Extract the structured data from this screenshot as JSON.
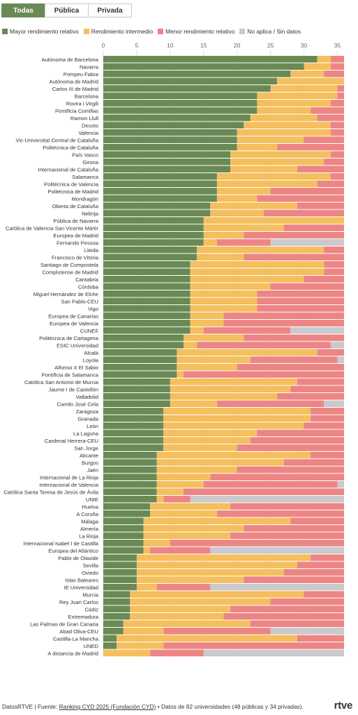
{
  "tabs": [
    {
      "label": "Todas",
      "active": true
    },
    {
      "label": "Pública",
      "active": false
    },
    {
      "label": "Privada",
      "active": false
    }
  ],
  "colors": {
    "mayor": "#6a8a55",
    "intermedio": "#f5bf5e",
    "menor": "#ee8585",
    "na": "#c9c9ce"
  },
  "legend": [
    {
      "label": "Mayor rendimiento relativo",
      "color": "#6a8a55"
    },
    {
      "label": "Rendimiento intermedio",
      "color": "#f5bf5e"
    },
    {
      "label": "Menor rendimiento relativo",
      "color": "#ee8585"
    },
    {
      "label": "No aplica / Sin datos",
      "color": "#c9c9ce"
    }
  ],
  "chart_data": {
    "type": "bar",
    "orientation": "horizontal",
    "stacked": true,
    "xlim": [
      0,
      36
    ],
    "xticks": [
      0,
      5,
      10,
      15,
      20,
      25,
      30,
      35
    ],
    "grid": true,
    "series_keys": [
      "mayor",
      "intermedio",
      "menor",
      "na"
    ],
    "series": [
      {
        "name": "Mayor rendimiento relativo",
        "key": "mayor"
      },
      {
        "name": "Rendimiento intermedio",
        "key": "intermedio"
      },
      {
        "name": "Menor rendimiento relativo",
        "key": "menor"
      },
      {
        "name": "No aplica / Sin datos",
        "key": "na"
      }
    ],
    "rows": [
      {
        "name": "Autónoma de Barcelona",
        "v": [
          32,
          2,
          2,
          0
        ]
      },
      {
        "name": "Navarra",
        "v": [
          30,
          4,
          2,
          0
        ]
      },
      {
        "name": "Pompeu Fabra",
        "v": [
          28,
          5,
          3,
          0
        ]
      },
      {
        "name": "Autónoma de Madrid",
        "v": [
          26,
          10,
          0,
          0
        ]
      },
      {
        "name": "Carlos III de Madrid",
        "v": [
          25,
          10,
          1,
          0
        ]
      },
      {
        "name": "Barcelona",
        "v": [
          23,
          12,
          1,
          0
        ]
      },
      {
        "name": "Rovira i Virgili",
        "v": [
          23,
          11,
          2,
          0
        ]
      },
      {
        "name": "Pontificia Comillas",
        "v": [
          23,
          8,
          5,
          0
        ]
      },
      {
        "name": "Ramon Llull",
        "v": [
          22,
          10,
          4,
          0
        ]
      },
      {
        "name": "Deusto",
        "v": [
          21,
          13,
          2,
          0
        ]
      },
      {
        "name": "Valencia",
        "v": [
          20,
          14,
          2,
          0
        ]
      },
      {
        "name": "Vic-Universitat Central de Cataluña",
        "v": [
          20,
          10,
          6,
          0
        ]
      },
      {
        "name": "Politécnica de Cataluña",
        "v": [
          20,
          6,
          10,
          0
        ]
      },
      {
        "name": "País Vasco",
        "v": [
          19,
          15,
          2,
          0
        ]
      },
      {
        "name": "Girona",
        "v": [
          19,
          14,
          3,
          0
        ]
      },
      {
        "name": "Internacional de Cataluña",
        "v": [
          19,
          10,
          7,
          0
        ]
      },
      {
        "name": "Salamanca",
        "v": [
          17,
          17,
          2,
          0
        ]
      },
      {
        "name": "Politécnica de Valencia",
        "v": [
          17,
          15,
          4,
          0
        ]
      },
      {
        "name": "Politécnica de Madrid",
        "v": [
          17,
          8,
          11,
          0
        ]
      },
      {
        "name": "Mondragón",
        "v": [
          17,
          6,
          13,
          0
        ]
      },
      {
        "name": "Oberta de Cataluña",
        "v": [
          16,
          13,
          7,
          0
        ]
      },
      {
        "name": "Nebrija",
        "v": [
          16,
          8,
          12,
          0
        ]
      },
      {
        "name": "Pública de Navarra",
        "v": [
          15,
          21,
          0,
          0
        ]
      },
      {
        "name": "Católica de Valencia San Vicente Mártir",
        "v": [
          15,
          12,
          9,
          0
        ]
      },
      {
        "name": "Europea de Madrid",
        "v": [
          15,
          6,
          15,
          0
        ]
      },
      {
        "name": "Fernando Pessoa",
        "v": [
          15,
          2,
          8,
          11
        ]
      },
      {
        "name": "Lleida",
        "v": [
          14,
          19,
          3,
          0
        ]
      },
      {
        "name": "Francisco de Vitoria",
        "v": [
          14,
          7,
          15,
          0
        ]
      },
      {
        "name": "Santiago de Compostela",
        "v": [
          13,
          20,
          3,
          0
        ]
      },
      {
        "name": "Complutense de Madrid",
        "v": [
          13,
          20,
          3,
          0
        ]
      },
      {
        "name": "Cantabria",
        "v": [
          13,
          17,
          6,
          0
        ]
      },
      {
        "name": "Córdoba",
        "v": [
          13,
          12,
          11,
          0
        ]
      },
      {
        "name": "Miguel Hernández de Elche",
        "v": [
          13,
          10,
          13,
          0
        ]
      },
      {
        "name": "San Pablo-CEU",
        "v": [
          13,
          10,
          13,
          0
        ]
      },
      {
        "name": "Vigo",
        "v": [
          13,
          10,
          13,
          0
        ]
      },
      {
        "name": "Europea de Canarias",
        "v": [
          13,
          5,
          18,
          0
        ]
      },
      {
        "name": "Europea de Valencia",
        "v": [
          13,
          5,
          18,
          0
        ]
      },
      {
        "name": "CUNEF",
        "v": [
          13,
          2,
          13,
          8
        ]
      },
      {
        "name": "Politécnica de Cartagena",
        "v": [
          12,
          9,
          15,
          0
        ]
      },
      {
        "name": "ESIC Universidad",
        "v": [
          12,
          2,
          20,
          2
        ]
      },
      {
        "name": "Alcalá",
        "v": [
          11,
          21,
          4,
          0
        ]
      },
      {
        "name": "Loyola",
        "v": [
          11,
          11,
          13,
          1
        ]
      },
      {
        "name": "Alfonso X El Sabio",
        "v": [
          11,
          9,
          16,
          0
        ]
      },
      {
        "name": "Pontificia de Salamanca",
        "v": [
          11,
          1,
          24,
          0
        ]
      },
      {
        "name": "Católica San Antonio de Murcia",
        "v": [
          10,
          19,
          7,
          0
        ]
      },
      {
        "name": "Jaume I de Castellón",
        "v": [
          10,
          18,
          8,
          0
        ]
      },
      {
        "name": "Valladolid",
        "v": [
          10,
          16,
          10,
          0
        ]
      },
      {
        "name": "Camilo José Cela",
        "v": [
          10,
          7,
          16,
          3
        ]
      },
      {
        "name": "Zaragoza",
        "v": [
          9,
          22,
          5,
          0
        ]
      },
      {
        "name": "Granada",
        "v": [
          9,
          22,
          5,
          0
        ]
      },
      {
        "name": "León",
        "v": [
          9,
          21,
          6,
          0
        ]
      },
      {
        "name": "La Laguna",
        "v": [
          9,
          14,
          13,
          0
        ]
      },
      {
        "name": "Cardenal Herrera-CEU",
        "v": [
          9,
          13,
          14,
          0
        ]
      },
      {
        "name": "San Jorge",
        "v": [
          9,
          11,
          16,
          0
        ]
      },
      {
        "name": "Alicante",
        "v": [
          8,
          23,
          5,
          0
        ]
      },
      {
        "name": "Burgos",
        "v": [
          8,
          19,
          9,
          0
        ]
      },
      {
        "name": "Jaén",
        "v": [
          8,
          12,
          16,
          0
        ]
      },
      {
        "name": "Internacional de La Rioja",
        "v": [
          8,
          8,
          20,
          0
        ]
      },
      {
        "name": "Internacional de Valencia",
        "v": [
          8,
          7,
          20,
          1
        ]
      },
      {
        "name": "Católica Santa Teresa de Jesús de Ávila",
        "v": [
          8,
          4,
          24,
          0
        ]
      },
      {
        "name": "UNIE",
        "v": [
          8,
          1,
          4,
          23
        ]
      },
      {
        "name": "Huelva",
        "v": [
          7,
          12,
          17,
          0
        ]
      },
      {
        "name": "A Coruña",
        "v": [
          7,
          10,
          19,
          0
        ]
      },
      {
        "name": "Málaga",
        "v": [
          6,
          22,
          8,
          0
        ]
      },
      {
        "name": "Almería",
        "v": [
          6,
          15,
          15,
          0
        ]
      },
      {
        "name": "La Rioja",
        "v": [
          6,
          13,
          17,
          0
        ]
      },
      {
        "name": "Internacional Isabel I de Castilla",
        "v": [
          6,
          4,
          26,
          0
        ]
      },
      {
        "name": "Europea del Atlántico",
        "v": [
          6,
          1,
          9,
          20
        ]
      },
      {
        "name": "Pablo de Olavide",
        "v": [
          5,
          26,
          5,
          0
        ]
      },
      {
        "name": "Sevilla",
        "v": [
          5,
          24,
          7,
          0
        ]
      },
      {
        "name": "Oviedo",
        "v": [
          5,
          22,
          9,
          0
        ]
      },
      {
        "name": "Islas Baleares",
        "v": [
          5,
          16,
          15,
          0
        ]
      },
      {
        "name": "IE Universidad",
        "v": [
          5,
          3,
          8,
          20
        ]
      },
      {
        "name": "Murcia",
        "v": [
          4,
          26,
          6,
          0
        ]
      },
      {
        "name": "Rey Juan Carlos",
        "v": [
          4,
          21,
          11,
          0
        ]
      },
      {
        "name": "Cádiz",
        "v": [
          4,
          15,
          17,
          0
        ]
      },
      {
        "name": "Extremadura",
        "v": [
          4,
          14,
          18,
          0
        ]
      },
      {
        "name": "Las Palmas de Gran Canaria",
        "v": [
          3,
          19,
          14,
          0
        ]
      },
      {
        "name": "Abad Oliva-CEU",
        "v": [
          3,
          6,
          16,
          11
        ]
      },
      {
        "name": "Castilla-La Mancha",
        "v": [
          2,
          27,
          7,
          0
        ]
      },
      {
        "name": "UNED",
        "v": [
          2,
          7,
          27,
          0
        ]
      },
      {
        "name": "A distancia de Madrid",
        "v": [
          0,
          7,
          8,
          21
        ]
      }
    ]
  },
  "footer": {
    "prefix": "DatosRTVE | Fuente:",
    "source_link": "Ranking CYD 2025 (Fundación CYD)",
    "suffix": "• Datos de 82 universidades (48 públicas y 34 privadas)."
  },
  "brand": "rtve"
}
